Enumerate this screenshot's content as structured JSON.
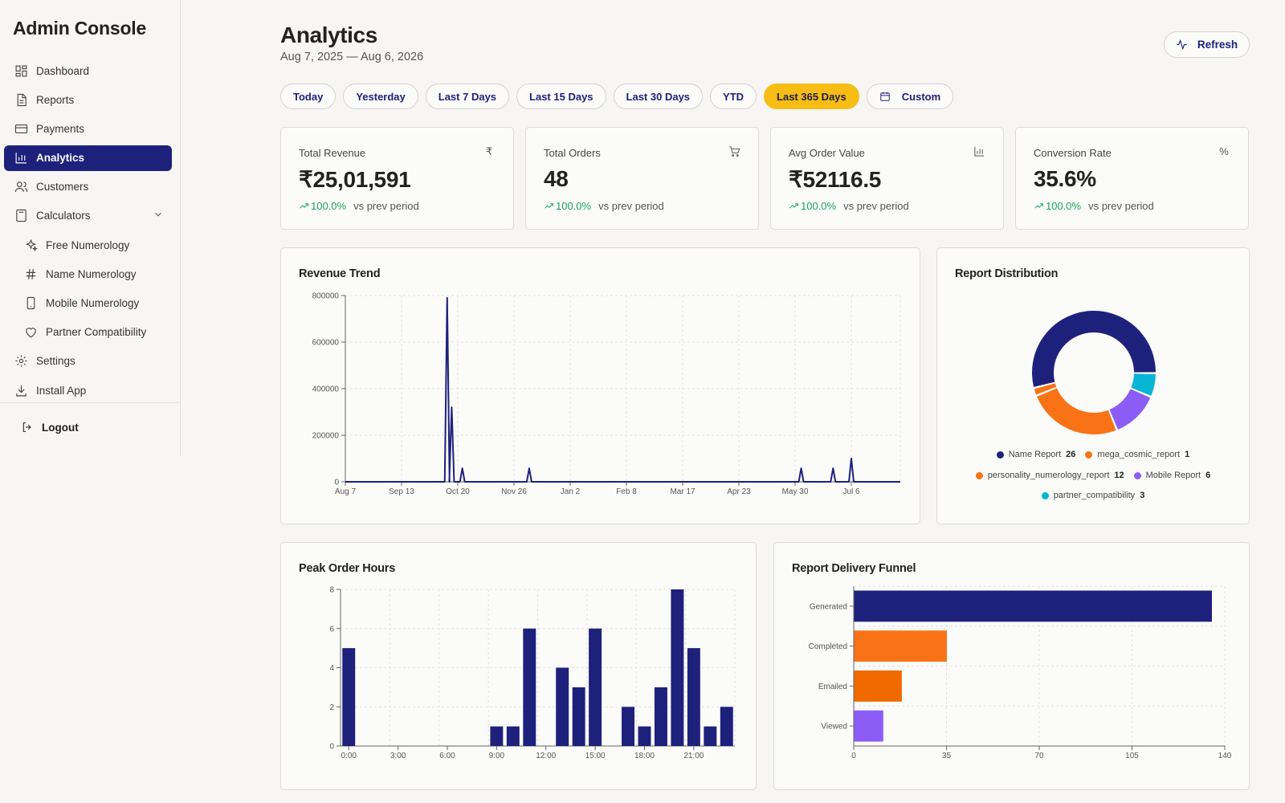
{
  "app": {
    "title": "Admin Console"
  },
  "sidebar": {
    "items": [
      {
        "label": "Dashboard",
        "icon": "dashboard-icon"
      },
      {
        "label": "Reports",
        "icon": "document-icon"
      },
      {
        "label": "Payments",
        "icon": "credit-card-icon"
      },
      {
        "label": "Analytics",
        "icon": "bar-chart-icon",
        "active": true
      },
      {
        "label": "Customers",
        "icon": "users-icon"
      },
      {
        "label": "Calculators",
        "icon": "calculator-icon",
        "expanded": true
      },
      {
        "label": "Free Numerology",
        "icon": "sparkles-icon",
        "sub": true
      },
      {
        "label": "Name Numerology",
        "icon": "hash-icon",
        "sub": true
      },
      {
        "label": "Mobile Numerology",
        "icon": "phone-icon",
        "sub": true
      },
      {
        "label": "Partner Compatibility",
        "icon": "heart-icon",
        "sub": true
      },
      {
        "label": "Settings",
        "icon": "gear-icon"
      },
      {
        "label": "Install App",
        "icon": "download-icon"
      }
    ],
    "logout_label": "Logout"
  },
  "header": {
    "title": "Analytics",
    "date_range": "Aug 7, 2025 — Aug 6, 2026",
    "refresh_label": "Refresh"
  },
  "ranges": {
    "items": [
      "Today",
      "Yesterday",
      "Last 7 Days",
      "Last 15 Days",
      "Last 30 Days",
      "YTD",
      "Last 365 Days",
      "Custom"
    ],
    "selected": "Last 365 Days"
  },
  "kpis": [
    {
      "label": "Total Revenue",
      "value": "₹25,01,591",
      "change": "100.0%",
      "compare": "vs prev period",
      "icon": "rupee-icon"
    },
    {
      "label": "Total Orders",
      "value": "48",
      "change": "100.0%",
      "compare": "vs prev period",
      "icon": "cart-icon"
    },
    {
      "label": "Avg Order Value",
      "value": "₹52116.5",
      "change": "100.0%",
      "compare": "vs prev period",
      "icon": "bar-chart-icon"
    },
    {
      "label": "Conversion Rate",
      "value": "35.6%",
      "change": "100.0%",
      "compare": "vs prev period",
      "icon": "percent-icon"
    }
  ],
  "colors": {
    "navy": "#1e217c",
    "orange": "#f97316",
    "orange_dark": "#f06a00",
    "purple": "#8b5cf6",
    "cyan": "#06b6d4",
    "accent_yellow": "#f7bd15",
    "positive": "#19a55a"
  },
  "charts": {
    "revenue_trend": {
      "title": "Revenue Trend"
    },
    "report_distribution": {
      "title": "Report Distribution"
    },
    "peak_order_hours": {
      "title": "Peak Order Hours"
    },
    "delivery_funnel": {
      "title": "Report Delivery Funnel"
    }
  },
  "chart_data": [
    {
      "type": "line",
      "title": "Revenue Trend",
      "x_tick_labels": [
        "Aug 7",
        "Sep 13",
        "Oct 20",
        "Nov 26",
        "Jan 2",
        "Feb 8",
        "Mar 17",
        "Apr 23",
        "May 30",
        "Jul 6"
      ],
      "y_tick_labels": [
        "0",
        "200000",
        "400000",
        "600000",
        "800000"
      ],
      "ylim": [
        0,
        800000
      ],
      "grid": true,
      "points": [
        {
          "x": "Oct 13",
          "y": 790000
        },
        {
          "x": "Oct 16",
          "y": 320000
        },
        {
          "x": "Oct 23",
          "y": 58000
        },
        {
          "x": "Dec 6",
          "y": 58000
        },
        {
          "x": "Jun 3",
          "y": 58000
        },
        {
          "x": "Jun 24",
          "y": 58000
        },
        {
          "x": "Jul 6",
          "y": 100000
        }
      ]
    },
    {
      "type": "pie",
      "title": "Report Distribution",
      "donut": true,
      "legend_position": "bottom",
      "slices": [
        {
          "label": "Name Report",
          "value": 26,
          "color": "#1e217c"
        },
        {
          "label": "partner_compatibility",
          "value": 3,
          "color": "#06b6d4"
        },
        {
          "label": "Mobile Report",
          "value": 6,
          "color": "#8b5cf6"
        },
        {
          "label": "personality_numerology_report",
          "value": 12,
          "color": "#f97316"
        },
        {
          "label": "mega_cosmic_report",
          "value": 1,
          "color": "#f97316"
        }
      ],
      "legend_rows": [
        [
          "Name Report",
          "mega_cosmic_report"
        ],
        [
          "personality_numerology_report",
          "Mobile Report"
        ],
        [
          "partner_compatibility"
        ]
      ]
    },
    {
      "type": "bar",
      "title": "Peak Order Hours",
      "categories": [
        "0:00",
        "1:00",
        "2:00",
        "3:00",
        "4:00",
        "5:00",
        "6:00",
        "7:00",
        "8:00",
        "9:00",
        "10:00",
        "11:00",
        "12:00",
        "13:00",
        "14:00",
        "15:00",
        "16:00",
        "17:00",
        "18:00",
        "19:00",
        "20:00",
        "21:00",
        "22:00",
        "23:00"
      ],
      "values": [
        5,
        0,
        0,
        0,
        0,
        0,
        0,
        0,
        0,
        1,
        1,
        6,
        0,
        4,
        3,
        6,
        0,
        2,
        1,
        3,
        8,
        5,
        1,
        2
      ],
      "x_tick_labels": [
        "0:00",
        "3:00",
        "6:00",
        "9:00",
        "12:00",
        "15:00",
        "18:00",
        "21:00"
      ],
      "y_tick_labels": [
        "0",
        "2",
        "4",
        "6",
        "8"
      ],
      "ylim": [
        0,
        8
      ],
      "grid": true,
      "color": "#1e217c"
    },
    {
      "type": "bar",
      "orientation": "horizontal",
      "title": "Report Delivery Funnel",
      "categories": [
        "Generated",
        "Completed",
        "Emailed",
        "Viewed"
      ],
      "values": [
        135,
        35,
        18,
        11
      ],
      "colors": [
        "#1e217c",
        "#f97316",
        "#f06a00",
        "#8b5cf6"
      ],
      "x_tick_labels": [
        "0",
        "35",
        "70",
        "105",
        "140"
      ],
      "xlim": [
        0,
        140
      ],
      "grid": true
    }
  ]
}
